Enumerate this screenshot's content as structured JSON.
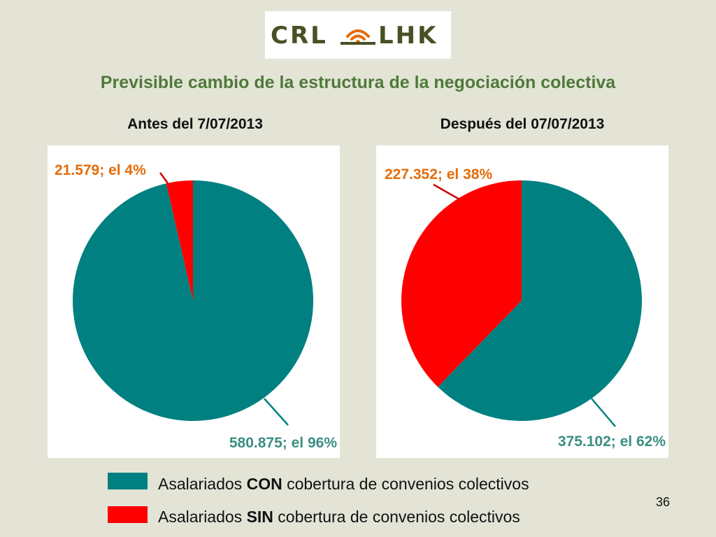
{
  "header": {
    "logo_text": "CRL LHK",
    "title": "Previsible cambio de la estructura de la negociación colectiva"
  },
  "colors": {
    "con": "#008080",
    "sin": "#ff0000",
    "label_con": "#3b8e82",
    "label_sin": "#e46c0a",
    "title": "#4f7a3a"
  },
  "chart_data": [
    {
      "type": "pie",
      "title": "Antes del 7/07/2013",
      "slices": [
        {
          "key": "sin",
          "value": 21579,
          "label": "21.579; el 4%"
        },
        {
          "key": "con",
          "value": 580875,
          "label": "580.875; el 96%"
        }
      ]
    },
    {
      "type": "pie",
      "title": "Después del 07/07/2013",
      "slices": [
        {
          "key": "sin",
          "value": 227352,
          "label": "227.352; el 38%"
        },
        {
          "key": "con",
          "value": 375102,
          "label": "375.102; el 62%"
        }
      ]
    }
  ],
  "legend": [
    {
      "key": "con",
      "prefix": "Asalariados ",
      "bold": "CON",
      "suffix": " cobertura de convenios colectivos"
    },
    {
      "key": "sin",
      "prefix": "Asalariados ",
      "bold": "SIN",
      "suffix": " cobertura de convenios colectivos"
    }
  ],
  "footer": {
    "page_number": "36"
  }
}
